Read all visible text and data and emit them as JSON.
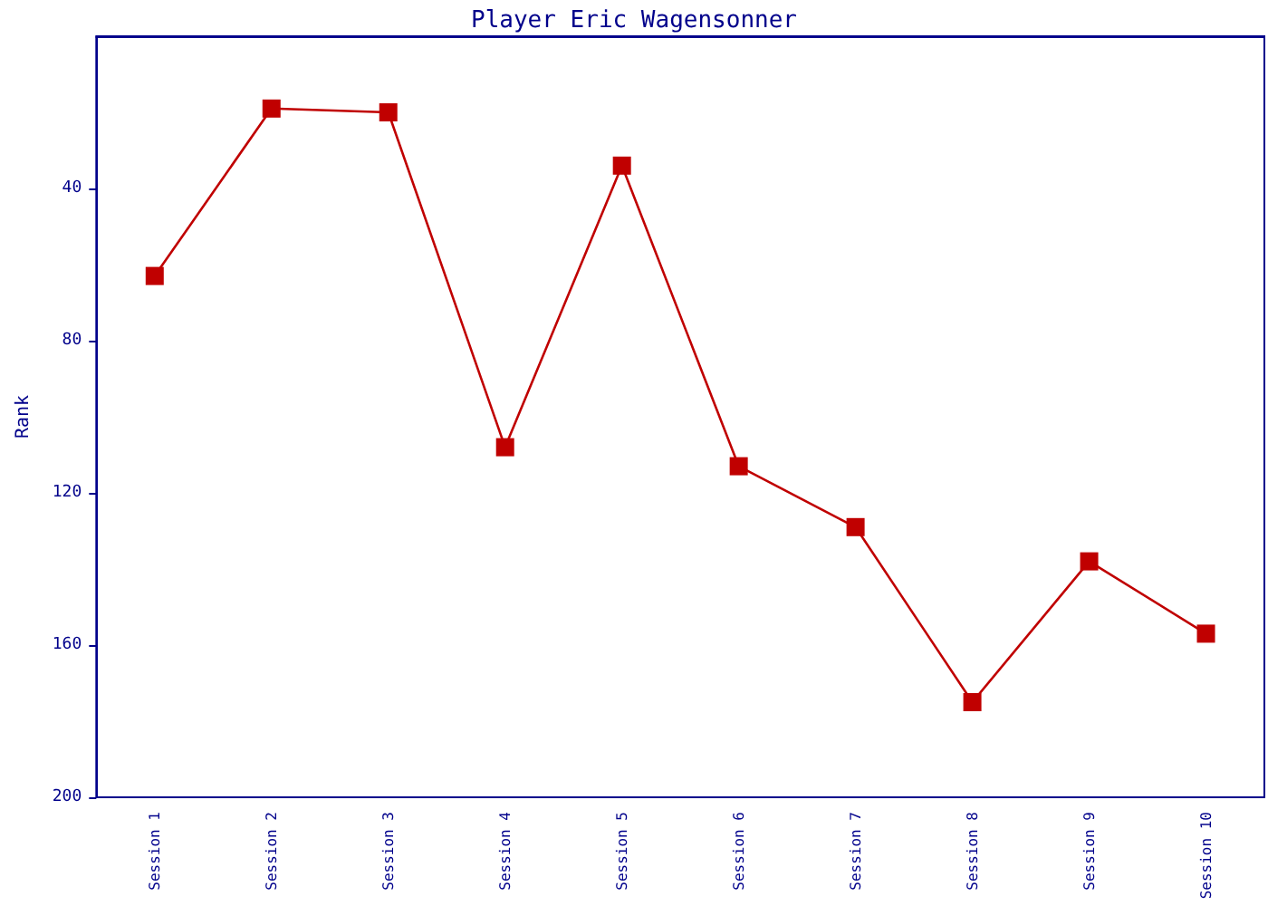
{
  "chart_data": {
    "type": "line",
    "title": "Player Eric Wagensonner",
    "ylabel": "Rank",
    "categories": [
      "Session 1",
      "Session 2",
      "Session 3",
      "Session 4",
      "Session 5",
      "Session 6",
      "Session 7",
      "Session 8",
      "Session 9",
      "Session 10"
    ],
    "series": [
      {
        "color": "#c00000",
        "values": [
          63,
          19,
          20,
          108,
          34,
          113,
          129,
          175,
          138,
          157
        ]
      }
    ],
    "ylim": [
      200,
      0
    ],
    "yticks": [
      40,
      80,
      120,
      160,
      200
    ],
    "grid": false,
    "marker": "square",
    "line_style": "solid"
  }
}
